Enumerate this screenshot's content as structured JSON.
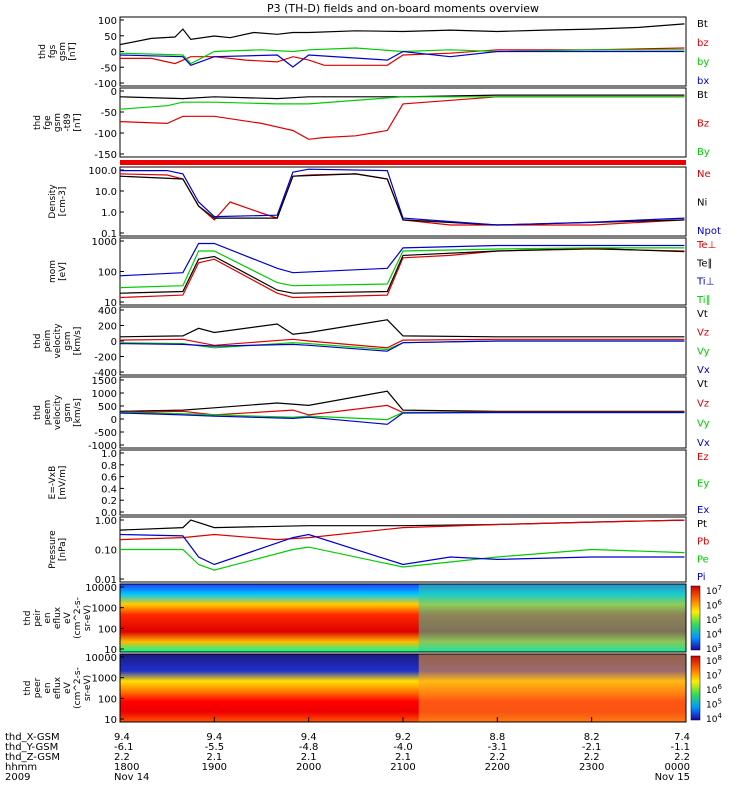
{
  "title": "P3 (TH-D) fields and on-board moments overview",
  "chart_data": [
    {
      "type": "line",
      "panel": "fgs",
      "ylabel": [
        "thd",
        "fgs",
        "gsm",
        "[nT]"
      ],
      "yticks": [
        "100",
        "50",
        "0",
        "-50",
        "-100"
      ],
      "ylim": [
        -100,
        100
      ],
      "series": [
        {
          "name": "Bt",
          "color": "#000000",
          "x": [
            1800,
            1820,
            1835,
            1840,
            1845,
            1900,
            1910,
            1925,
            1940,
            1950,
            2000,
            2030,
            2100,
            2130,
            2200,
            2230,
            2300,
            2330,
            2359
          ],
          "values": [
            20,
            38,
            42,
            65,
            35,
            45,
            40,
            55,
            50,
            55,
            55,
            60,
            58,
            62,
            58,
            62,
            65,
            70,
            80
          ]
        },
        {
          "name": "bz",
          "color": "#dd0000",
          "x": [
            1800,
            1820,
            1835,
            1845,
            1900,
            1920,
            1940,
            1950,
            2000,
            2010,
            2030,
            2050,
            2100,
            2130,
            2200,
            2300,
            2359
          ],
          "values": [
            -20,
            -20,
            -35,
            -15,
            -15,
            -25,
            -30,
            -15,
            -25,
            -40,
            -40,
            -40,
            -10,
            -5,
            5,
            5,
            10
          ]
        },
        {
          "name": "by",
          "color": "#00cc00",
          "x": [
            1800,
            1840,
            1845,
            1900,
            1930,
            1950,
            2000,
            2030,
            2100,
            2130,
            2200,
            2300,
            2359
          ],
          "values": [
            -5,
            -10,
            -35,
            0,
            5,
            0,
            5,
            10,
            0,
            5,
            0,
            5,
            5
          ]
        },
        {
          "name": "bx",
          "color": "#0000cc",
          "x": [
            1800,
            1840,
            1845,
            1900,
            1940,
            1950,
            2000,
            2050,
            2100,
            2130,
            2200,
            2300,
            2359
          ],
          "values": [
            -10,
            -15,
            -40,
            -15,
            -10,
            -45,
            -10,
            -25,
            0,
            -15,
            0,
            0,
            0
          ]
        }
      ]
    },
    {
      "type": "line",
      "panel": "fge",
      "ylabel": [
        "thd",
        "fge",
        "gsm",
        "-t89",
        "[nT]"
      ],
      "yticks": [
        "0",
        "-50",
        "-100",
        "-150"
      ],
      "ylim": [
        -175,
        20
      ],
      "series": [
        {
          "name": "Bt",
          "color": "#000000",
          "x": [
            1800,
            1840,
            1900,
            1940,
            2000,
            2040,
            2100,
            2200,
            2359
          ],
          "values": [
            -5,
            -10,
            -5,
            -10,
            -5,
            -5,
            -5,
            0,
            0
          ]
        },
        {
          "name": "Bz",
          "color": "#dd0000",
          "x": [
            1800,
            1830,
            1840,
            1900,
            1930,
            1950,
            2000,
            2010,
            2030,
            2050,
            2100,
            2200,
            2359
          ],
          "values": [
            -75,
            -80,
            -60,
            -60,
            -80,
            -100,
            -125,
            -120,
            -115,
            -100,
            -25,
            -5,
            -5
          ]
        },
        {
          "name": "By",
          "color": "#00cc00",
          "x": [
            1800,
            1830,
            1840,
            1900,
            1940,
            2000,
            2100,
            2200,
            2359
          ],
          "values": [
            -40,
            -30,
            -20,
            -20,
            -25,
            -25,
            -5,
            -5,
            -5
          ]
        }
      ]
    },
    {
      "type": "line",
      "panel": "density",
      "ylabel": [
        "Density",
        "[cm-3]"
      ],
      "yticks": [
        "100.0",
        "10.0",
        "1.0",
        "0.1"
      ],
      "ylim": [
        0.1,
        100
      ],
      "yscale": "log",
      "series": [
        {
          "name": "Ne",
          "color": "#dd0000",
          "x": [
            1800,
            1830,
            1840,
            1850,
            1900,
            1910,
            1930,
            1940,
            1950,
            2000,
            2030,
            2050,
            2100,
            2130,
            2200,
            2300,
            2359
          ],
          "values": [
            50,
            45,
            30,
            2,
            0.5,
            3,
            1,
            0.6,
            40,
            45,
            50,
            30,
            0.5,
            0.3,
            0.3,
            0.3,
            0.5
          ]
        },
        {
          "name": "Ni",
          "color": "#000000",
          "x": [
            1800,
            1840,
            1850,
            1900,
            1940,
            1950,
            2030,
            2050,
            2100,
            2200,
            2359
          ],
          "values": [
            40,
            30,
            2,
            0.6,
            0.6,
            40,
            50,
            30,
            0.5,
            0.3,
            0.5
          ]
        },
        {
          "name": "Npot",
          "color": "#0000cc",
          "x": [
            1800,
            1830,
            1840,
            1850,
            1900,
            1940,
            1950,
            2000,
            2050,
            2100,
            2200,
            2300,
            2359
          ],
          "values": [
            70,
            70,
            50,
            3,
            0.7,
            0.8,
            60,
            80,
            70,
            0.6,
            0.3,
            0.4,
            0.6
          ]
        }
      ]
    },
    {
      "type": "line",
      "panel": "mom",
      "ylabel": [
        "mom",
        "[eV]"
      ],
      "yticks": [
        "1000",
        "100",
        "10"
      ],
      "ylim": [
        10,
        5000
      ],
      "yscale": "log",
      "series": [
        {
          "name": "Te⊥",
          "color": "#dd0000",
          "x": [
            1800,
            1840,
            1850,
            1900,
            1940,
            1950,
            2050,
            2100,
            2130,
            2200,
            2300,
            2359
          ],
          "values": [
            20,
            25,
            500,
            700,
            30,
            20,
            25,
            800,
            1000,
            1500,
            1800,
            1500
          ]
        },
        {
          "name": "Te∥",
          "color": "#000000",
          "x": [
            1800,
            1840,
            1850,
            1900,
            1940,
            1950,
            2050,
            2100,
            2200,
            2300,
            2359
          ],
          "values": [
            30,
            35,
            700,
            900,
            40,
            30,
            35,
            1000,
            1500,
            1900,
            1400
          ]
        },
        {
          "name": "Ti⊥",
          "color": "#0000cc",
          "x": [
            1800,
            1840,
            1850,
            1900,
            1940,
            1950,
            2050,
            2100,
            2200,
            2300,
            2359
          ],
          "values": [
            150,
            200,
            3000,
            3000,
            300,
            200,
            300,
            2000,
            2500,
            2500,
            2500
          ]
        },
        {
          "name": "Ti∥",
          "color": "#00cc00",
          "x": [
            1800,
            1840,
            1850,
            1900,
            1940,
            1950,
            2050,
            2100,
            2200,
            2300,
            2359
          ],
          "values": [
            50,
            60,
            1500,
            1500,
            80,
            60,
            70,
            1500,
            1800,
            2000,
            2000
          ]
        }
      ]
    },
    {
      "type": "line",
      "panel": "peim",
      "ylabel": [
        "thd",
        "peim",
        "velocity",
        "gsm",
        "[km/s]"
      ],
      "yticks": [
        "400",
        "200",
        "0",
        "-200",
        "-400"
      ],
      "ylim": [
        -400,
        400
      ],
      "series": [
        {
          "name": "Vt",
          "color": "#000000",
          "x": [
            1800,
            1840,
            1850,
            1900,
            1940,
            1950,
            2000,
            2050,
            2100,
            2200,
            2359
          ],
          "values": [
            50,
            60,
            150,
            100,
            200,
            80,
            100,
            250,
            60,
            50,
            50
          ]
        },
        {
          "name": "Vz",
          "color": "#dd0000",
          "x": [
            1800,
            1840,
            1900,
            1950,
            2000,
            2050,
            2100,
            2200,
            2359
          ],
          "values": [
            10,
            20,
            -50,
            20,
            0,
            -80,
            10,
            20,
            20
          ]
        },
        {
          "name": "Vy",
          "color": "#00cc00",
          "x": [
            1800,
            1840,
            1900,
            1950,
            2000,
            2050,
            2100,
            2200,
            2359
          ],
          "values": [
            -20,
            -30,
            -80,
            -20,
            -30,
            -100,
            -20,
            0,
            0
          ]
        },
        {
          "name": "Vx",
          "color": "#0000cc",
          "x": [
            1800,
            1840,
            1900,
            1950,
            2000,
            2050,
            2100,
            2200,
            2359
          ],
          "values": [
            -30,
            -40,
            -60,
            -40,
            -50,
            -120,
            -20,
            0,
            0
          ]
        }
      ]
    },
    {
      "type": "line",
      "panel": "peem",
      "ylabel": [
        "thd",
        "peem",
        "velocity",
        "gsm",
        "[km/s]"
      ],
      "yticks": [
        "1500",
        "1000",
        "500",
        "0",
        "-500",
        "-1000"
      ],
      "ylim": [
        -1500,
        1500
      ],
      "series": [
        {
          "name": "Vt",
          "color": "#000000",
          "x": [
            1800,
            1840,
            1900,
            1940,
            2000,
            2050,
            2100,
            2200,
            2359
          ],
          "values": [
            50,
            100,
            200,
            400,
            300,
            900,
            100,
            50,
            50
          ]
        },
        {
          "name": "Vz",
          "color": "#dd0000",
          "x": [
            1800,
            1840,
            1900,
            1950,
            2000,
            2050,
            2100,
            2200,
            2359
          ],
          "values": [
            0,
            50,
            -100,
            100,
            -100,
            300,
            0,
            20,
            20
          ]
        },
        {
          "name": "Vy",
          "color": "#00cc00",
          "x": [
            1800,
            1840,
            1900,
            1950,
            2000,
            2050,
            2100,
            2200,
            2359
          ],
          "values": [
            0,
            -50,
            -100,
            -200,
            -150,
            -300,
            0,
            0,
            0
          ]
        },
        {
          "name": "Vx",
          "color": "#0000cc",
          "x": [
            1800,
            1840,
            1900,
            1950,
            2000,
            2050,
            2100,
            2200,
            2359
          ],
          "values": [
            -20,
            -100,
            -150,
            -250,
            -200,
            -500,
            -20,
            0,
            0
          ]
        }
      ]
    },
    {
      "type": "line",
      "panel": "exb",
      "ylabel": [
        "E=-VxB",
        "[mV/m]"
      ],
      "yticks": [
        "1.0",
        "0.8",
        "0.6",
        "0.4",
        "0.2",
        "0.0"
      ],
      "ylim": [
        0,
        1
      ],
      "series": [
        {
          "name": "Ez",
          "color": "#dd0000",
          "x": [],
          "values": []
        },
        {
          "name": "Ey",
          "color": "#00cc00",
          "x": [],
          "values": []
        },
        {
          "name": "Ex",
          "color": "#0000cc",
          "x": [],
          "values": []
        }
      ]
    },
    {
      "type": "line",
      "panel": "pressure",
      "ylabel": [
        "Pressure",
        "[nPa]"
      ],
      "yticks": [
        "1.00",
        "0.10",
        "0.01"
      ],
      "ylim": [
        0.01,
        4
      ],
      "yscale": "log",
      "series": [
        {
          "name": "Pt",
          "color": "#000000",
          "x": [
            1800,
            1840,
            1845,
            1900,
            2000,
            2100,
            2200,
            2300,
            2359
          ],
          "values": [
            1.2,
            1.5,
            3.0,
            1.5,
            1.8,
            1.8,
            2.0,
            2.5,
            3.0
          ]
        },
        {
          "name": "Pb",
          "color": "#dd0000",
          "x": [
            1800,
            1840,
            1900,
            1940,
            2000,
            2100,
            2200,
            2300,
            2359
          ],
          "values": [
            0.5,
            0.6,
            0.8,
            0.5,
            0.6,
            1.5,
            2.0,
            2.5,
            3.0
          ]
        },
        {
          "name": "Pe",
          "color": "#00cc00",
          "x": [
            1800,
            1840,
            1850,
            1900,
            1950,
            2000,
            2100,
            2200,
            2300,
            2359
          ],
          "values": [
            0.2,
            0.2,
            0.05,
            0.03,
            0.2,
            0.25,
            0.04,
            0.1,
            0.2,
            0.15
          ]
        },
        {
          "name": "Pi",
          "color": "#0000cc",
          "x": [
            1800,
            1840,
            1850,
            1900,
            1950,
            2000,
            2100,
            2130,
            2200,
            2300,
            2359
          ],
          "values": [
            0.8,
            0.7,
            0.1,
            0.05,
            0.6,
            0.8,
            0.05,
            0.1,
            0.08,
            0.1,
            0.1
          ]
        }
      ]
    },
    {
      "type": "heatmap",
      "panel": "peir",
      "ylabel": [
        "thd",
        "peir",
        "en",
        "eflux",
        "eV",
        "(cm^2-s-",
        "sr-eV)"
      ],
      "yticks": [
        "10000",
        "1000",
        "100",
        "10"
      ],
      "yscale": "log",
      "colorbar_ticks": [
        "10^7",
        "10^6",
        "10^5",
        "10^4",
        "10^3"
      ]
    },
    {
      "type": "heatmap",
      "panel": "peer",
      "ylabel": [
        "thd",
        "peer",
        "en",
        "eflux",
        "eV",
        "(cm^2-s-",
        "sr-eV)"
      ],
      "yticks": [
        "10000",
        "1000",
        "100",
        "10"
      ],
      "yscale": "log",
      "colorbar_ticks": [
        "10^8",
        "10^7",
        "10^6",
        "10^5",
        "10^4"
      ]
    }
  ],
  "x_axis": {
    "row_labels": [
      "thd_X-GSM",
      "thd_Y-GSM",
      "thd_Z-GSM",
      "hhmm",
      "2009"
    ],
    "ticks": [
      {
        "X": "9.4",
        "Y": "-6.1",
        "Z": "2.2",
        "hhmm": "1800",
        "date": "Nov 14"
      },
      {
        "X": "9.4",
        "Y": "-5.5",
        "Z": "2.1",
        "hhmm": "1900",
        "date": ""
      },
      {
        "X": "9.4",
        "Y": "-4.8",
        "Z": "2.1",
        "hhmm": "2000",
        "date": ""
      },
      {
        "X": "9.2",
        "Y": "-4.0",
        "Z": "2.1",
        "hhmm": "2100",
        "date": ""
      },
      {
        "X": "8.8",
        "Y": "-3.1",
        "Z": "2.2",
        "hhmm": "2200",
        "date": ""
      },
      {
        "X": "8.2",
        "Y": "-2.1",
        "Z": "2.2",
        "hhmm": "2300",
        "date": ""
      },
      {
        "X": "7.4",
        "Y": "-1.1",
        "Z": "2.2",
        "hhmm": "0000",
        "date": "Nov 15"
      }
    ]
  }
}
